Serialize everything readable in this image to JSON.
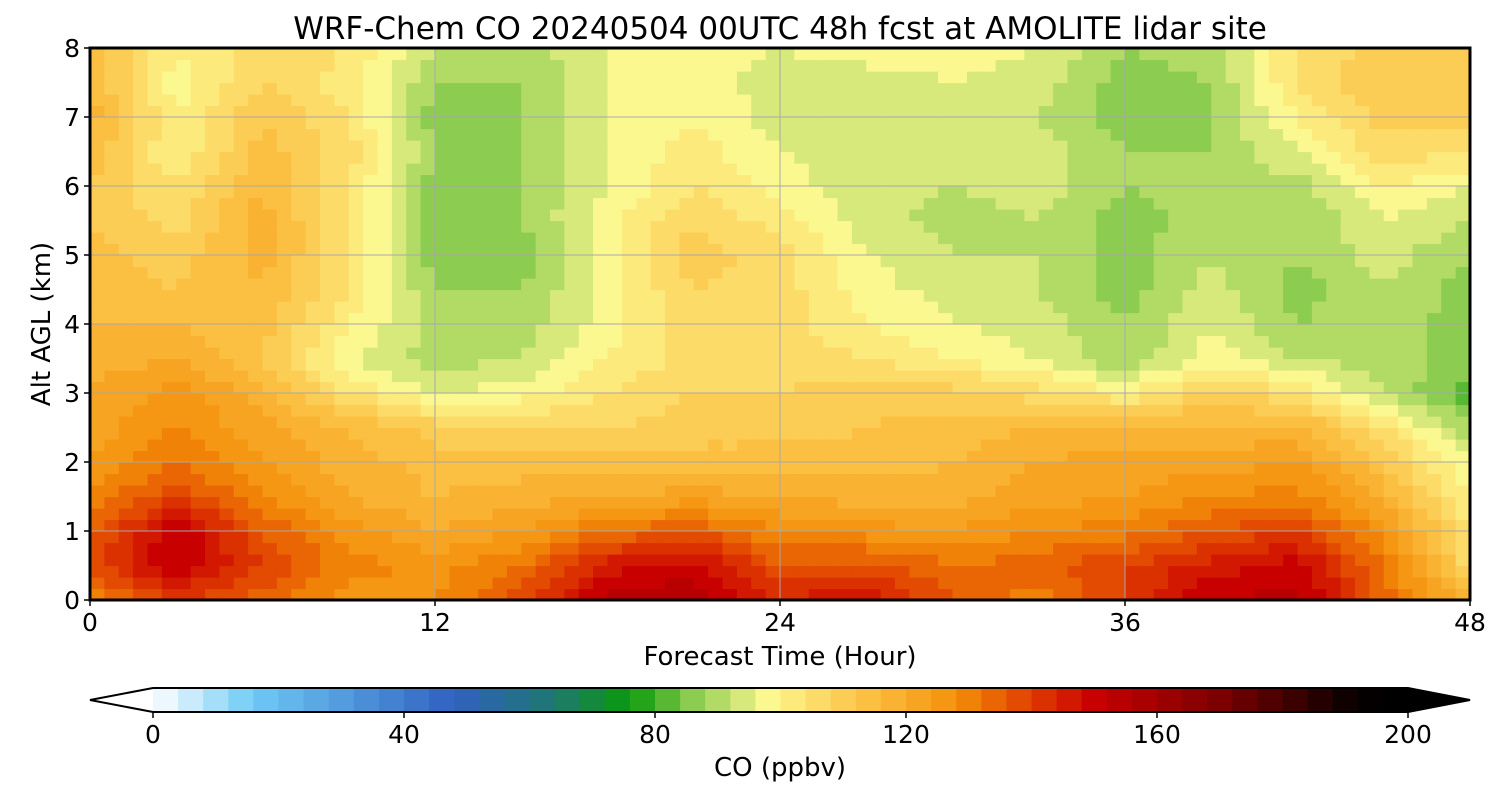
{
  "chart_data": {
    "type": "heatmap",
    "subtype": "filled-contour",
    "title": "WRF-Chem CO  20240504 00UTC 48h fcst at AMOLITE lidar site",
    "xlabel": "Forecast Time (Hour)",
    "ylabel": "Alt AGL (km)",
    "xlim": [
      0,
      48
    ],
    "ylim": [
      0,
      8
    ],
    "xticks": [
      0,
      12,
      24,
      36,
      48
    ],
    "yticks": [
      0,
      1,
      2,
      3,
      4,
      5,
      6,
      7,
      8
    ],
    "grid": true,
    "x": [
      0,
      3,
      6,
      9,
      12,
      15,
      18,
      21,
      24,
      27,
      30,
      33,
      36,
      39,
      42,
      45,
      48
    ],
    "y": [
      0,
      0.5,
      1,
      1.5,
      2,
      2.5,
      3,
      3.5,
      4,
      4.5,
      5,
      5.5,
      6,
      6.5,
      7,
      7.5,
      8
    ],
    "z": [
      [
        128,
        140,
        134,
        126,
        128,
        138,
        154,
        156,
        144,
        148,
        136,
        130,
        140,
        152,
        154,
        134,
        118
      ],
      [
        138,
        152,
        140,
        130,
        126,
        132,
        146,
        150,
        136,
        138,
        132,
        134,
        140,
        146,
        150,
        132,
        106
      ],
      [
        134,
        152,
        136,
        126,
        120,
        124,
        132,
        136,
        128,
        126,
        124,
        128,
        130,
        136,
        140,
        126,
        104
      ],
      [
        128,
        140,
        128,
        120,
        116,
        118,
        120,
        122,
        120,
        118,
        118,
        122,
        124,
        128,
        130,
        118,
        100
      ],
      [
        124,
        132,
        124,
        118,
        114,
        114,
        114,
        114,
        114,
        114,
        116,
        120,
        122,
        122,
        124,
        112,
        96
      ],
      [
        122,
        128,
        122,
        116,
        110,
        108,
        108,
        110,
        110,
        112,
        114,
        116,
        118,
        116,
        118,
        104,
        88
      ],
      [
        120,
        126,
        118,
        104,
        96,
        98,
        104,
        108,
        108,
        110,
        110,
        106,
        100,
        110,
        104,
        92,
        82
      ],
      [
        118,
        120,
        112,
        96,
        90,
        92,
        100,
        106,
        106,
        104,
        100,
        96,
        88,
        98,
        92,
        90,
        86
      ],
      [
        116,
        116,
        114,
        100,
        90,
        90,
        98,
        106,
        106,
        100,
        96,
        94,
        88,
        96,
        88,
        90,
        86
      ],
      [
        114,
        112,
        116,
        104,
        88,
        88,
        98,
        108,
        106,
        98,
        94,
        92,
        86,
        94,
        86,
        92,
        86
      ],
      [
        114,
        110,
        118,
        104,
        86,
        86,
        98,
        110,
        106,
        96,
        92,
        92,
        86,
        92,
        88,
        94,
        88
      ],
      [
        112,
        106,
        118,
        104,
        86,
        88,
        98,
        108,
        102,
        94,
        90,
        92,
        86,
        90,
        88,
        96,
        92
      ],
      [
        112,
        104,
        116,
        104,
        86,
        88,
        96,
        104,
        98,
        94,
        92,
        94,
        88,
        90,
        90,
        100,
        96
      ],
      [
        114,
        100,
        114,
        106,
        88,
        88,
        96,
        102,
        96,
        92,
        94,
        94,
        88,
        88,
        96,
        106,
        104
      ],
      [
        118,
        100,
        112,
        104,
        86,
        88,
        96,
        100,
        94,
        92,
        94,
        92,
        86,
        88,
        100,
        110,
        110
      ],
      [
        116,
        98,
        108,
        102,
        88,
        88,
        96,
        98,
        94,
        94,
        96,
        94,
        86,
        88,
        104,
        112,
        112
      ],
      [
        114,
        100,
        106,
        104,
        92,
        90,
        96,
        98,
        96,
        98,
        98,
        96,
        88,
        90,
        104,
        110,
        112
      ]
    ],
    "colorbar": {
      "label": "CO  (ppbv)",
      "min": 0,
      "max": 200,
      "ticks": [
        0,
        40,
        80,
        120,
        160,
        200
      ],
      "extend": "both",
      "orientation": "horizontal",
      "stops": [
        {
          "v": 0,
          "c": "#ffffff"
        },
        {
          "v": 16,
          "c": "#6ecaf5"
        },
        {
          "v": 48,
          "c": "#3060c0"
        },
        {
          "v": 64,
          "c": "#1e7870"
        },
        {
          "v": 76,
          "c": "#0a9a0a"
        },
        {
          "v": 86,
          "c": "#8ccc50"
        },
        {
          "v": 98,
          "c": "#fcf890"
        },
        {
          "v": 112,
          "c": "#fcc64a"
        },
        {
          "v": 128,
          "c": "#f4900a"
        },
        {
          "v": 140,
          "c": "#e03c00"
        },
        {
          "v": 150,
          "c": "#c80000"
        },
        {
          "v": 170,
          "c": "#7c0000"
        },
        {
          "v": 192,
          "c": "#050000"
        },
        {
          "v": 200,
          "c": "#000000"
        }
      ]
    }
  }
}
